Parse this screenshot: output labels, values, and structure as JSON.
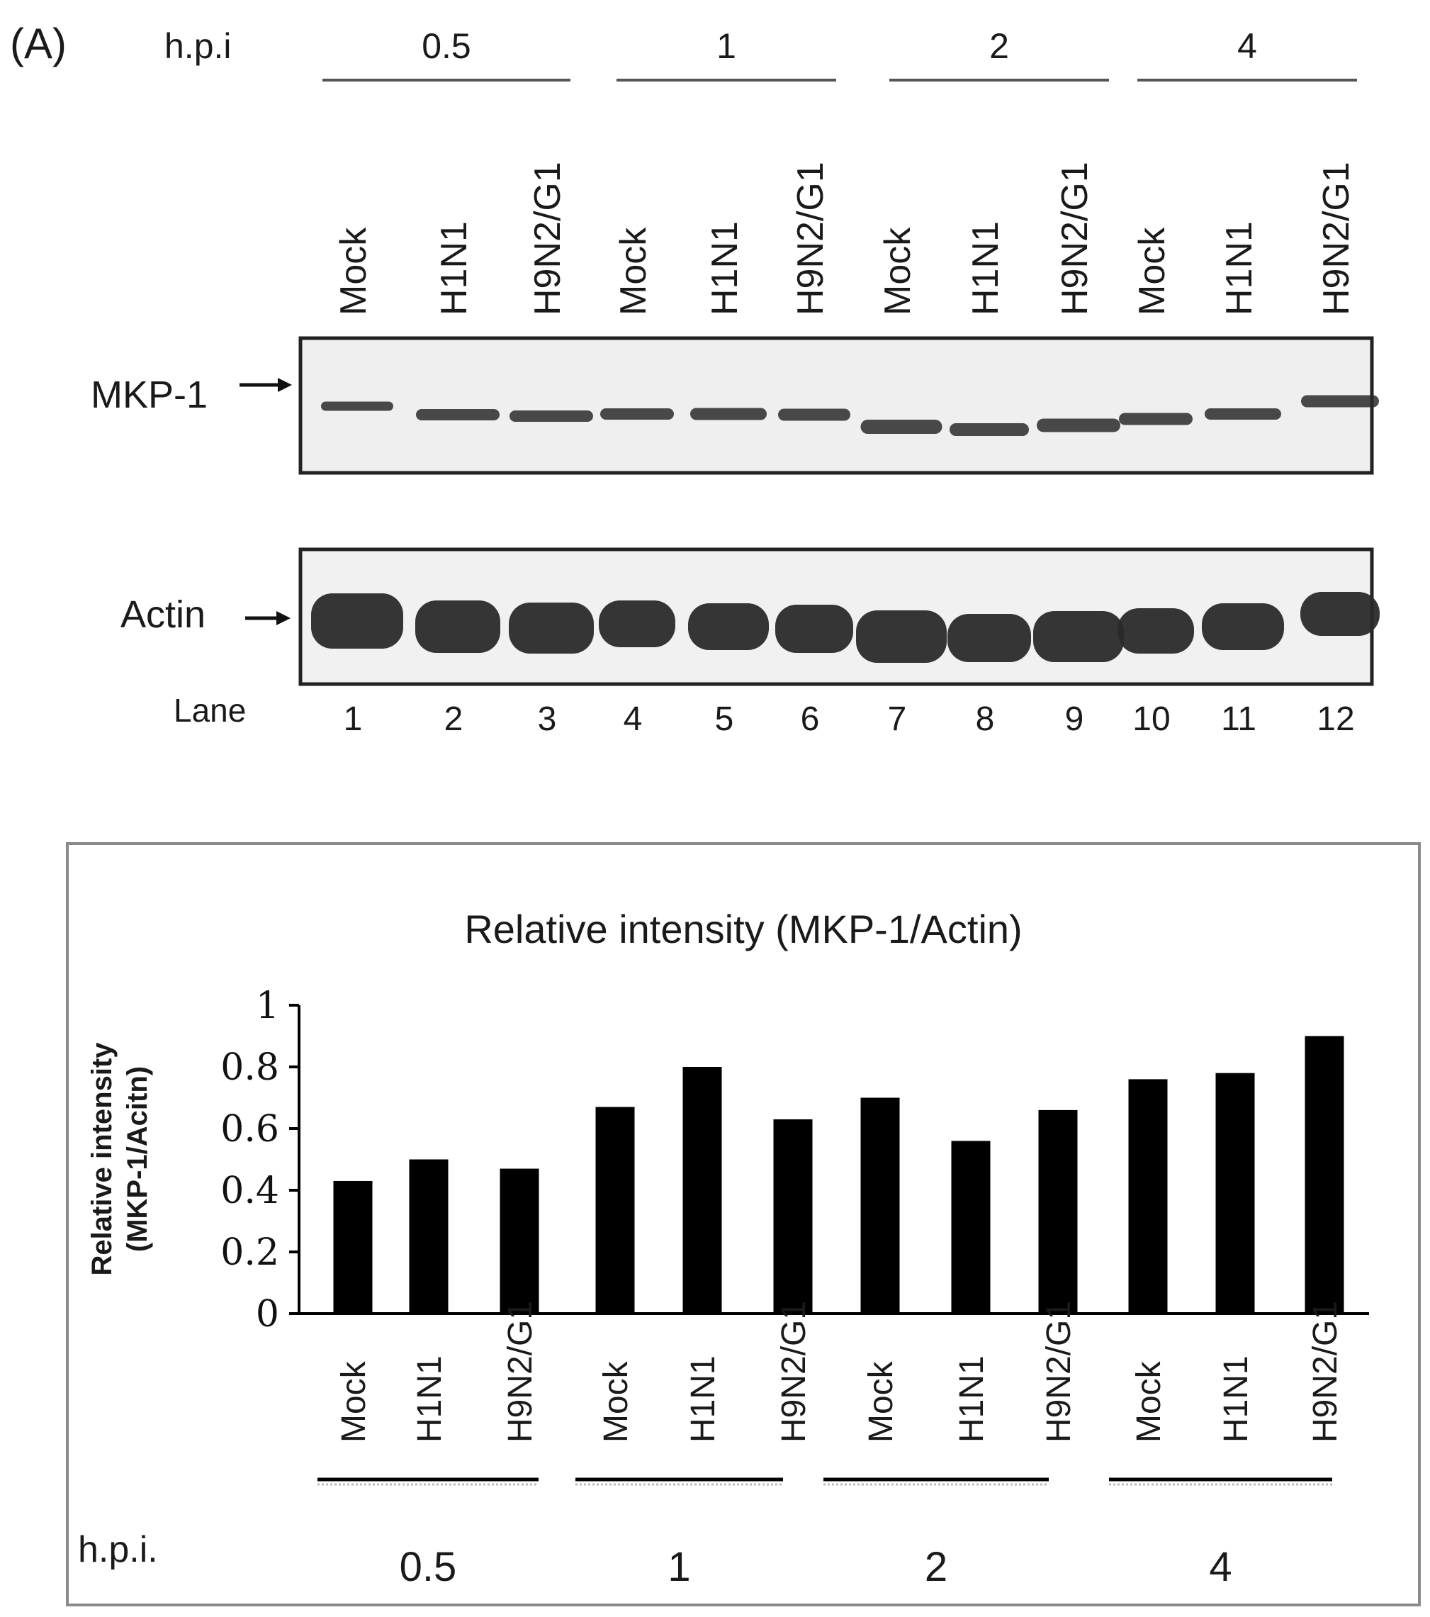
{
  "panel_label": "(A)",
  "hpi_label_top": "h.p.i",
  "hpi_label_bottom": "h.p.i.",
  "lane_label": "Lane",
  "timepoints": [
    "0.5",
    "1",
    "2",
    "4"
  ],
  "lanes": [
    {
      "num": "1",
      "treatment": "Mock"
    },
    {
      "num": "2",
      "treatment": "H1N1"
    },
    {
      "num": "3",
      "treatment": "H9N2/G1"
    },
    {
      "num": "4",
      "treatment": "Mock"
    },
    {
      "num": "5",
      "treatment": "H1N1"
    },
    {
      "num": "6",
      "treatment": "H9N2/G1"
    },
    {
      "num": "7",
      "treatment": "Mock"
    },
    {
      "num": "8",
      "treatment": "H1N1"
    },
    {
      "num": "9",
      "treatment": "H9N2/G1"
    },
    {
      "num": "10",
      "treatment": "Mock"
    },
    {
      "num": "11",
      "treatment": "H1N1"
    },
    {
      "num": "12",
      "treatment": "H9N2/G1"
    }
  ],
  "blots": {
    "mkp1_label": "MKP-1",
    "actin_label": "Actin",
    "band_color": "#2a2a2a"
  },
  "chart_data": {
    "type": "bar",
    "title": "Relative intensity (MKP-1/Actin)",
    "ylabel_line1": "Relative intensity",
    "ylabel_line2": "(MKP-1/Acitn)",
    "xlabel": "h.p.i.",
    "categories": [
      "Mock",
      "H1N1",
      "H9N2/G1",
      "Mock",
      "H1N1",
      "H9N2/G1",
      "Mock",
      "H1N1",
      "H9N2/G1",
      "Mock",
      "H1N1",
      "H9N2/G1"
    ],
    "groups": [
      "0.5",
      "1",
      "2",
      "4"
    ],
    "values": [
      0.43,
      0.5,
      0.47,
      0.67,
      0.8,
      0.63,
      0.7,
      0.56,
      0.66,
      0.76,
      0.78,
      0.9
    ],
    "ylim": [
      0,
      1
    ],
    "yticks": [
      "0",
      "0.2",
      "0.4",
      "0.6",
      "0.8",
      "1"
    ],
    "bar_color": "#000000",
    "grid": false,
    "legend": "none"
  }
}
